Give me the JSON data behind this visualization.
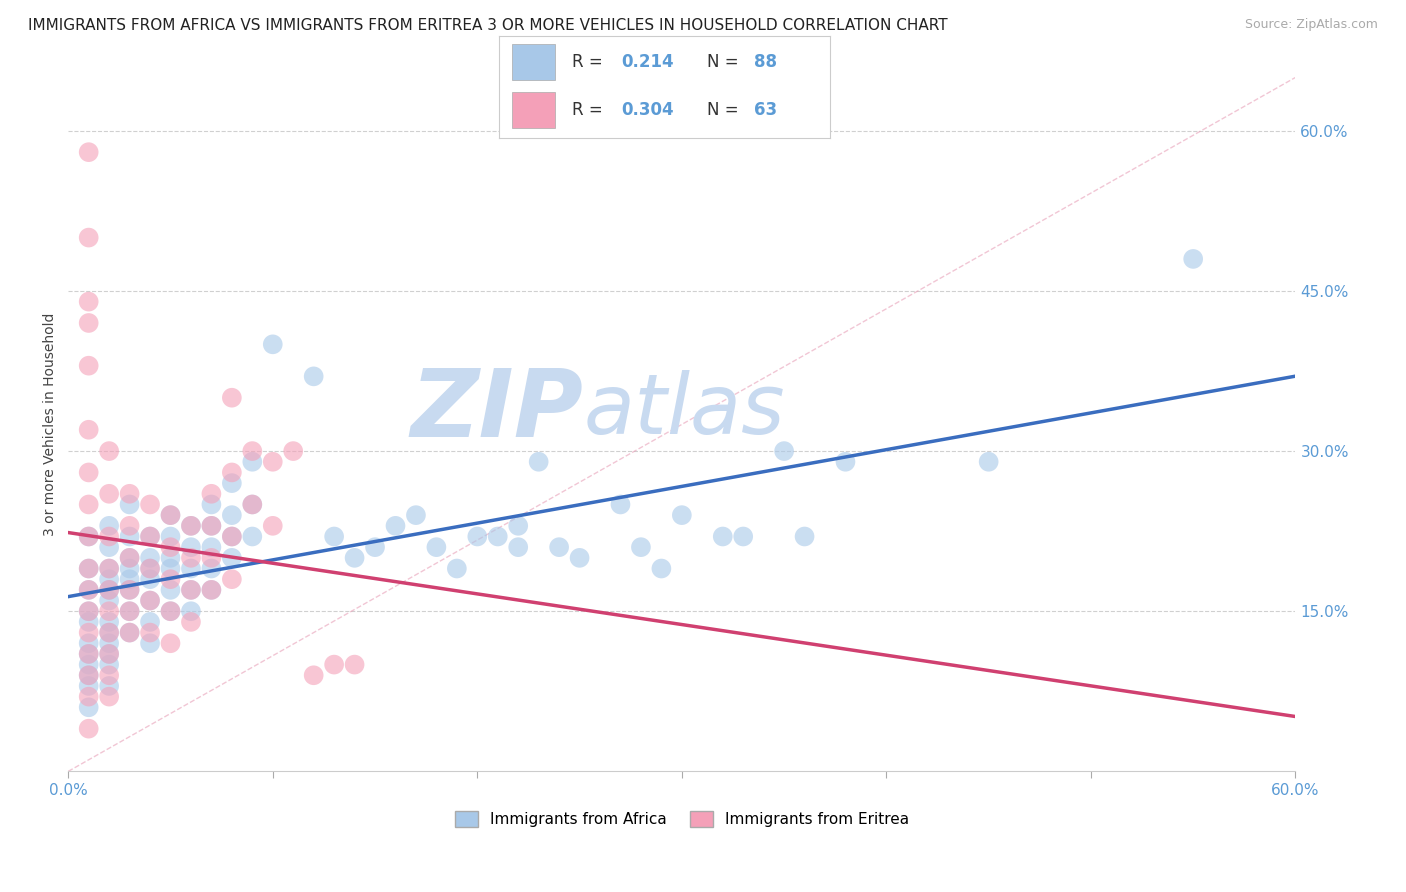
{
  "title": "IMMIGRANTS FROM AFRICA VS IMMIGRANTS FROM ERITREA 3 OR MORE VEHICLES IN HOUSEHOLD CORRELATION CHART",
  "source": "Source: ZipAtlas.com",
  "ylabel": "3 or more Vehicles in Household",
  "xlim": [
    0.0,
    0.6
  ],
  "ylim": [
    0.0,
    0.65
  ],
  "xticks": [
    0.0,
    0.1,
    0.2,
    0.3,
    0.4,
    0.5,
    0.6
  ],
  "yticks_right": [
    0.15,
    0.3,
    0.45,
    0.6
  ],
  "legend_labels": [
    "Immigrants from Africa",
    "Immigrants from Eritrea"
  ],
  "R_africa": 0.214,
  "N_africa": 88,
  "R_eritrea": 0.304,
  "N_eritrea": 63,
  "color_africa": "#a8c8e8",
  "color_eritrea": "#f4a0b8",
  "color_africa_line": "#3a6dbf",
  "color_eritrea_line": "#d04070",
  "watermark_zip": "ZIP",
  "watermark_atlas": "atlas",
  "watermark_color_zip": "#c8daf0",
  "watermark_color_atlas": "#c8daf0",
  "background_color": "#ffffff",
  "title_fontsize": 11,
  "africa_points": [
    [
      0.01,
      0.22
    ],
    [
      0.01,
      0.19
    ],
    [
      0.01,
      0.17
    ],
    [
      0.01,
      0.15
    ],
    [
      0.01,
      0.14
    ],
    [
      0.01,
      0.12
    ],
    [
      0.01,
      0.11
    ],
    [
      0.01,
      0.1
    ],
    [
      0.01,
      0.09
    ],
    [
      0.01,
      0.08
    ],
    [
      0.02,
      0.23
    ],
    [
      0.02,
      0.21
    ],
    [
      0.02,
      0.19
    ],
    [
      0.02,
      0.18
    ],
    [
      0.02,
      0.17
    ],
    [
      0.02,
      0.16
    ],
    [
      0.02,
      0.14
    ],
    [
      0.02,
      0.13
    ],
    [
      0.02,
      0.12
    ],
    [
      0.02,
      0.11
    ],
    [
      0.02,
      0.1
    ],
    [
      0.02,
      0.08
    ],
    [
      0.03,
      0.25
    ],
    [
      0.03,
      0.22
    ],
    [
      0.03,
      0.2
    ],
    [
      0.03,
      0.19
    ],
    [
      0.03,
      0.18
    ],
    [
      0.03,
      0.17
    ],
    [
      0.03,
      0.15
    ],
    [
      0.03,
      0.13
    ],
    [
      0.04,
      0.22
    ],
    [
      0.04,
      0.2
    ],
    [
      0.04,
      0.19
    ],
    [
      0.04,
      0.18
    ],
    [
      0.04,
      0.16
    ],
    [
      0.04,
      0.14
    ],
    [
      0.04,
      0.12
    ],
    [
      0.05,
      0.24
    ],
    [
      0.05,
      0.22
    ],
    [
      0.05,
      0.2
    ],
    [
      0.05,
      0.19
    ],
    [
      0.05,
      0.17
    ],
    [
      0.05,
      0.15
    ],
    [
      0.06,
      0.23
    ],
    [
      0.06,
      0.21
    ],
    [
      0.06,
      0.19
    ],
    [
      0.06,
      0.17
    ],
    [
      0.06,
      0.15
    ],
    [
      0.07,
      0.25
    ],
    [
      0.07,
      0.23
    ],
    [
      0.07,
      0.21
    ],
    [
      0.07,
      0.19
    ],
    [
      0.07,
      0.17
    ],
    [
      0.08,
      0.27
    ],
    [
      0.08,
      0.24
    ],
    [
      0.08,
      0.22
    ],
    [
      0.08,
      0.2
    ],
    [
      0.09,
      0.29
    ],
    [
      0.09,
      0.25
    ],
    [
      0.09,
      0.22
    ],
    [
      0.1,
      0.4
    ],
    [
      0.12,
      0.37
    ],
    [
      0.13,
      0.22
    ],
    [
      0.14,
      0.2
    ],
    [
      0.15,
      0.21
    ],
    [
      0.16,
      0.23
    ],
    [
      0.17,
      0.24
    ],
    [
      0.18,
      0.21
    ],
    [
      0.19,
      0.19
    ],
    [
      0.2,
      0.22
    ],
    [
      0.21,
      0.22
    ],
    [
      0.22,
      0.21
    ],
    [
      0.22,
      0.23
    ],
    [
      0.23,
      0.29
    ],
    [
      0.24,
      0.21
    ],
    [
      0.25,
      0.2
    ],
    [
      0.27,
      0.25
    ],
    [
      0.28,
      0.21
    ],
    [
      0.29,
      0.19
    ],
    [
      0.3,
      0.24
    ],
    [
      0.32,
      0.22
    ],
    [
      0.33,
      0.22
    ],
    [
      0.35,
      0.3
    ],
    [
      0.36,
      0.22
    ],
    [
      0.38,
      0.29
    ],
    [
      0.45,
      0.29
    ],
    [
      0.55,
      0.48
    ],
    [
      0.01,
      0.06
    ]
  ],
  "eritrea_points": [
    [
      0.01,
      0.58
    ],
    [
      0.01,
      0.5
    ],
    [
      0.01,
      0.44
    ],
    [
      0.01,
      0.42
    ],
    [
      0.01,
      0.38
    ],
    [
      0.01,
      0.32
    ],
    [
      0.01,
      0.28
    ],
    [
      0.01,
      0.25
    ],
    [
      0.01,
      0.22
    ],
    [
      0.01,
      0.19
    ],
    [
      0.01,
      0.17
    ],
    [
      0.01,
      0.15
    ],
    [
      0.01,
      0.13
    ],
    [
      0.01,
      0.11
    ],
    [
      0.01,
      0.09
    ],
    [
      0.01,
      0.07
    ],
    [
      0.01,
      0.04
    ],
    [
      0.02,
      0.3
    ],
    [
      0.02,
      0.26
    ],
    [
      0.02,
      0.22
    ],
    [
      0.02,
      0.19
    ],
    [
      0.02,
      0.17
    ],
    [
      0.02,
      0.15
    ],
    [
      0.02,
      0.13
    ],
    [
      0.02,
      0.11
    ],
    [
      0.02,
      0.09
    ],
    [
      0.02,
      0.07
    ],
    [
      0.03,
      0.26
    ],
    [
      0.03,
      0.23
    ],
    [
      0.03,
      0.2
    ],
    [
      0.03,
      0.17
    ],
    [
      0.03,
      0.15
    ],
    [
      0.03,
      0.13
    ],
    [
      0.04,
      0.25
    ],
    [
      0.04,
      0.22
    ],
    [
      0.04,
      0.19
    ],
    [
      0.04,
      0.16
    ],
    [
      0.04,
      0.13
    ],
    [
      0.05,
      0.24
    ],
    [
      0.05,
      0.21
    ],
    [
      0.05,
      0.18
    ],
    [
      0.05,
      0.15
    ],
    [
      0.05,
      0.12
    ],
    [
      0.06,
      0.23
    ],
    [
      0.06,
      0.2
    ],
    [
      0.06,
      0.17
    ],
    [
      0.06,
      0.14
    ],
    [
      0.07,
      0.26
    ],
    [
      0.07,
      0.23
    ],
    [
      0.07,
      0.2
    ],
    [
      0.07,
      0.17
    ],
    [
      0.08,
      0.35
    ],
    [
      0.08,
      0.28
    ],
    [
      0.08,
      0.22
    ],
    [
      0.08,
      0.18
    ],
    [
      0.09,
      0.3
    ],
    [
      0.09,
      0.25
    ],
    [
      0.1,
      0.29
    ],
    [
      0.1,
      0.23
    ],
    [
      0.11,
      0.3
    ],
    [
      0.12,
      0.09
    ],
    [
      0.13,
      0.1
    ],
    [
      0.14,
      0.1
    ]
  ]
}
